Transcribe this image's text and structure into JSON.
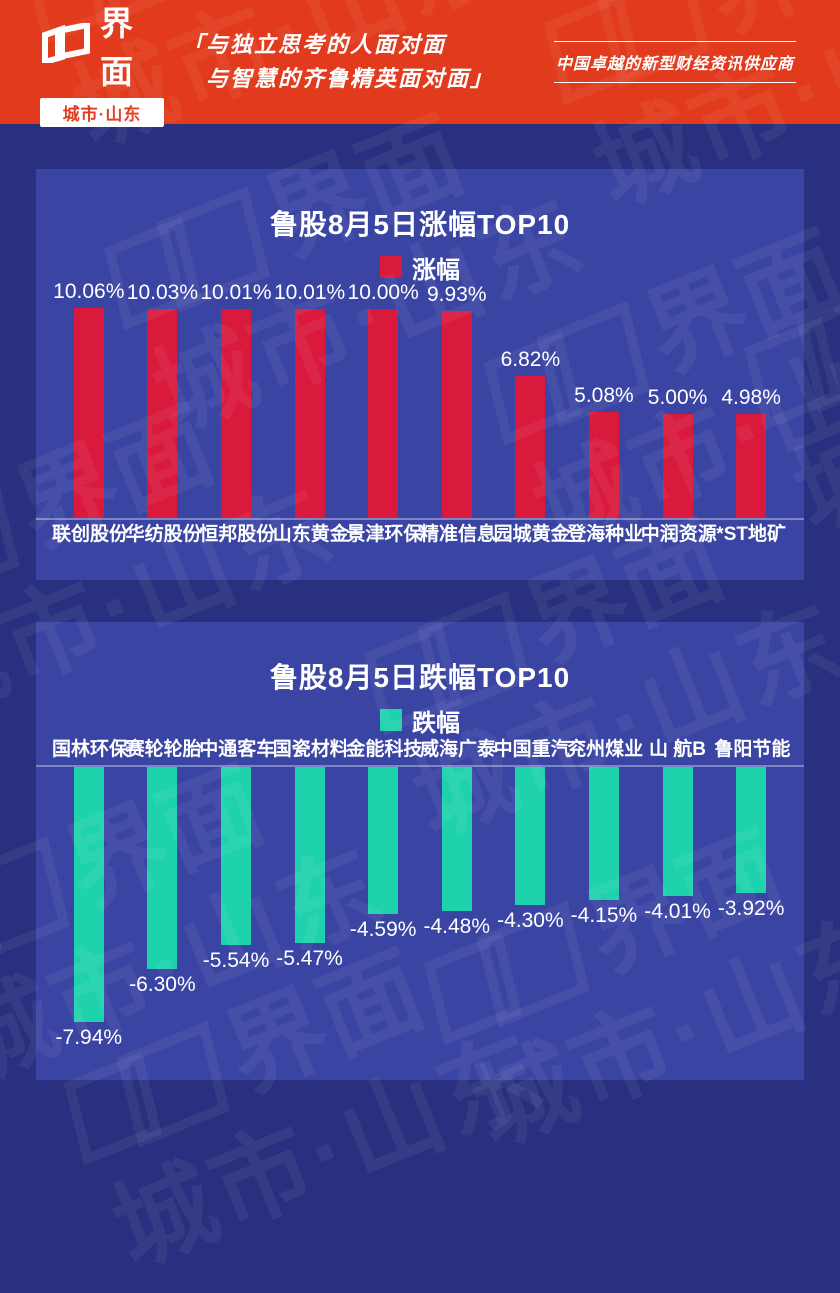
{
  "header": {
    "brand": "界面",
    "brand_sub": "城市·山东",
    "slogan_line1": "「与独立思考的人面对面",
    "slogan_line2": "与智慧的齐鲁精英面对面」",
    "tagline": "中国卓越的新型财经资讯供应商"
  },
  "watermark": {
    "line1": "界面",
    "line2": "城市·山东"
  },
  "colors": {
    "header_red": "#e23a1c",
    "background": "#28307f",
    "panel": "#3a44a3",
    "gain_red": "#d91a3c",
    "loss_teal": "#1fd2ae",
    "text": "#ffffff"
  },
  "chart_data": [
    {
      "type": "bar",
      "title": "鲁股8月5日涨幅TOP10",
      "legend_label": "涨幅",
      "legend_position": "top",
      "bar_color": "#d91a3c",
      "direction": "up",
      "grid": false,
      "xlabel": "",
      "ylabel": "",
      "ylim": [
        0,
        10.06
      ],
      "categories": [
        "联创股份",
        "华纺股份",
        "恒邦股份",
        "山东黄金",
        "景津环保",
        "精准信息",
        "园城黄金",
        "登海种业",
        "中润资源",
        "*ST地矿"
      ],
      "values": [
        10.06,
        10.03,
        10.01,
        10.01,
        10.0,
        9.93,
        6.82,
        5.08,
        5.0,
        4.98
      ],
      "value_labels": [
        "10.06%",
        "10.03%",
        "10.01%",
        "10.01%",
        "10.00%",
        "9.93%",
        "6.82%",
        "5.08%",
        "5.00%",
        "4.98%"
      ]
    },
    {
      "type": "bar",
      "title": "鲁股8月5日跌幅TOP10",
      "legend_label": "跌幅",
      "legend_position": "top",
      "bar_color": "#1fd2ae",
      "direction": "down",
      "grid": false,
      "xlabel": "",
      "ylabel": "",
      "ylim": [
        -7.94,
        0
      ],
      "categories": [
        "国林环保",
        "赛轮轮胎",
        "中通客车",
        "国瓷材料",
        "金能科技",
        "威海广泰",
        "中国重汽",
        "兖州煤业",
        "山 航B",
        "鲁阳节能"
      ],
      "values": [
        -7.94,
        -6.3,
        -5.54,
        -5.47,
        -4.59,
        -4.48,
        -4.3,
        -4.15,
        -4.01,
        -3.92
      ],
      "value_labels": [
        "-7.94%",
        "-6.30%",
        "-5.54%",
        "-5.47%",
        "-4.59%",
        "-4.48%",
        "-4.30%",
        "-4.15%",
        "-4.01%",
        "-3.92%"
      ]
    }
  ]
}
